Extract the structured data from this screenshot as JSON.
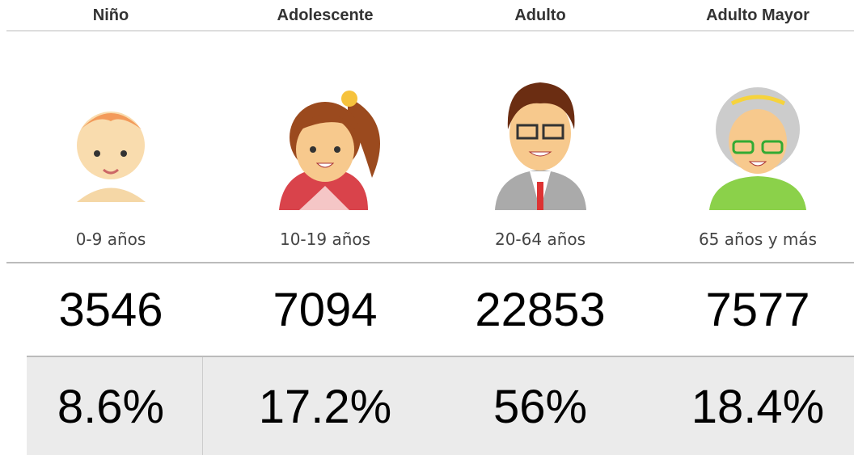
{
  "columns": [
    {
      "header": "Niño",
      "range": "0-9 años",
      "count": "3546",
      "percent": "8.6%"
    },
    {
      "header": "Adolescente",
      "range": "10-19 años",
      "count": "7094",
      "percent": "17.2%"
    },
    {
      "header": "Adulto",
      "range": "20-64 años",
      "count": "22853",
      "percent": "56%"
    },
    {
      "header": "Adulto Mayor",
      "range": "65 años y más",
      "count": "7577",
      "percent": "18.4%"
    }
  ]
}
